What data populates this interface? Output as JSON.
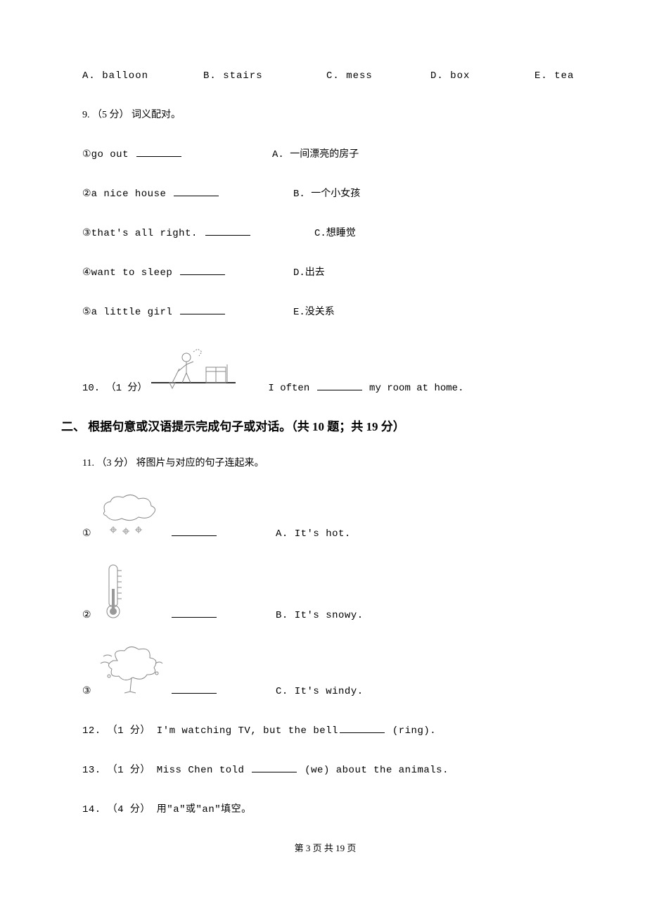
{
  "options": {
    "a": "A. balloon",
    "b": "B. stairs",
    "c": "C. mess",
    "d": "D. box",
    "e": "E. tea"
  },
  "q9": {
    "header": "9. （5 分） 词义配对。",
    "items": [
      {
        "num": "①",
        "left": "go out",
        "rightLabel": "A. 一间漂亮的房子",
        "leftWidth": 270
      },
      {
        "num": "②",
        "left": "a nice house",
        "rightLabel": "B. 一个小女孩",
        "leftWidth": 300
      },
      {
        "num": "③",
        "left": "that's all right.",
        "rightLabel": "C.想睡觉",
        "leftWidth": 330
      },
      {
        "num": "④",
        "left": "want to sleep",
        "rightLabel": "D.出去",
        "leftWidth": 300
      },
      {
        "num": "⑤",
        "left": "a little girl",
        "rightLabel": "E.没关系",
        "leftWidth": 300
      }
    ]
  },
  "q10": {
    "prefix": "10. （1 分）",
    "sentence_before": "I often",
    "sentence_after": " my room at home."
  },
  "section2": "二、 根据句意或汉语提示完成句子或对话。（共 10 题；共 19 分）",
  "q11": {
    "header": "11. （3 分） 将图片与对应的句子连起来。",
    "rows": [
      {
        "num": "①",
        "right": "A. It's hot."
      },
      {
        "num": "②",
        "right": "B. It's snowy."
      },
      {
        "num": "③",
        "right": "C. It's windy."
      }
    ]
  },
  "q12": {
    "prefix": "12. （1 分） I'm watching TV, but the bell",
    "suffix": " (ring)."
  },
  "q13": {
    "prefix": "13. （1 分） Miss Chen told ",
    "suffix": " (we) about the animals."
  },
  "q14": "14. （4 分） 用\"a\"或\"an\"填空。",
  "footer": "第 3 页 共 19 页"
}
